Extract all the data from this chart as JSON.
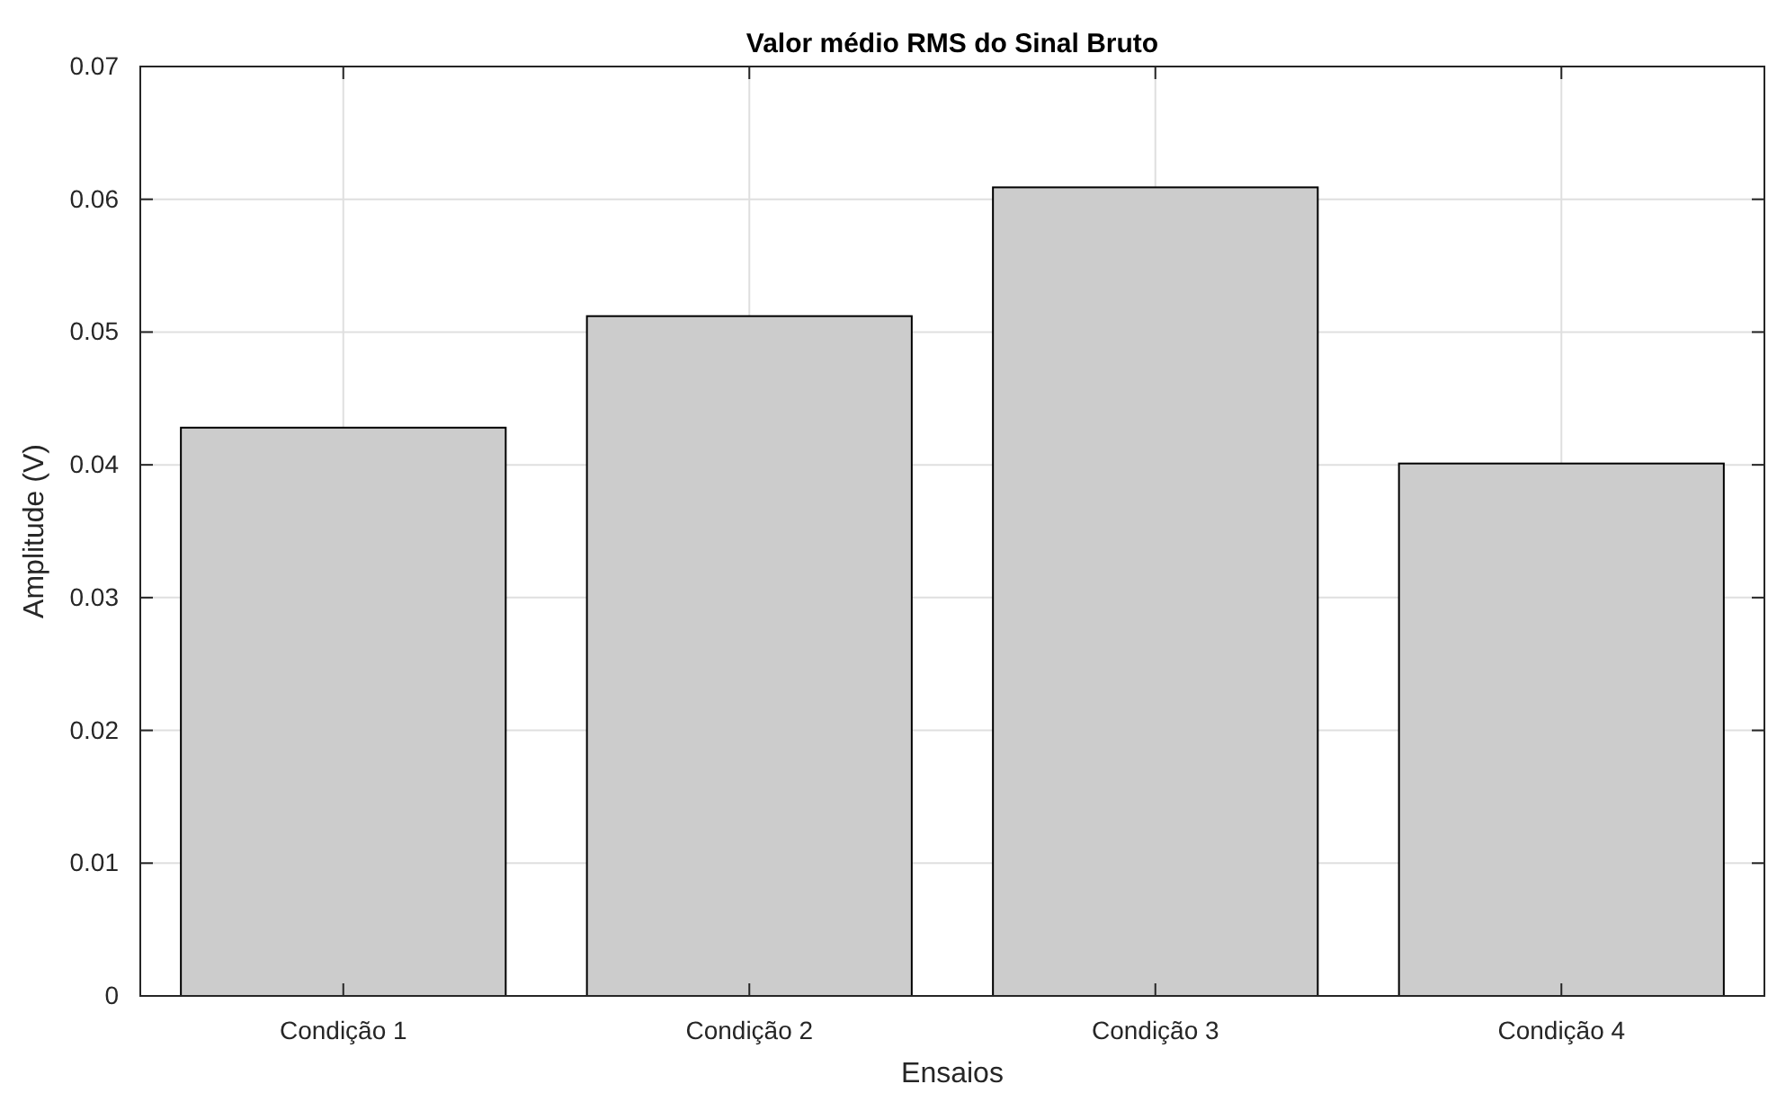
{
  "chart_data": {
    "type": "bar",
    "title": "Valor médio RMS do Sinal Bruto",
    "xlabel": "Ensaios",
    "ylabel": "Amplitude (V)",
    "categories": [
      "Condição 1",
      "Condição 2",
      "Condição 3",
      "Condição 4"
    ],
    "values": [
      0.0428,
      0.0512,
      0.0609,
      0.0401
    ],
    "color": "#cccccc",
    "ylim": [
      0,
      0.07
    ],
    "yticks": [
      0,
      0.01,
      0.02,
      0.03,
      0.04,
      0.05,
      0.06,
      0.07
    ],
    "grid": true
  }
}
